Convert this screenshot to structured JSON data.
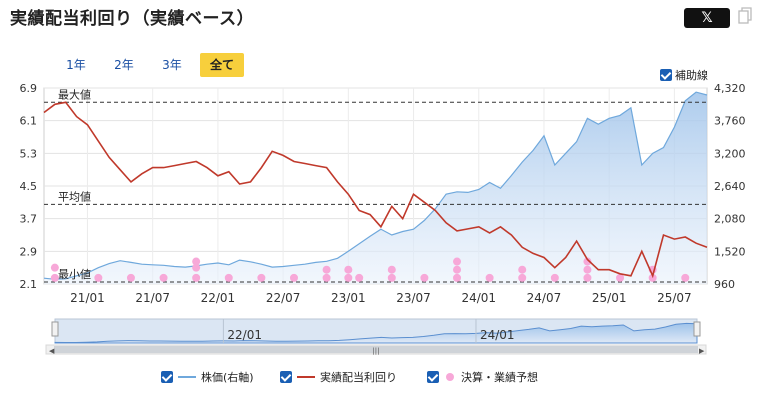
{
  "header": {
    "title": "実績配当利回り（実績ベース）",
    "share_label": "𝕏",
    "copy_icon": "copy-icon"
  },
  "tabs": [
    "1年",
    "2年",
    "3年",
    "全て"
  ],
  "active_tab": "全て",
  "aux_line_label": "補助線",
  "navigator": {
    "labels": [
      "22/01",
      "24/01"
    ],
    "scroll_handle": "|||"
  },
  "legend": [
    {
      "label": "株価(右軸)",
      "color": "#6fa8dc",
      "marker": "line"
    },
    {
      "label": "実績配当利回り",
      "color": "#c0392b",
      "marker": "line"
    },
    {
      "label": "決算・業績予想",
      "color": "#f7a8d8",
      "marker": "dot"
    }
  ],
  "chart_data": {
    "type": "line",
    "x_ticks": [
      "21/01",
      "21/07",
      "22/01",
      "22/07",
      "23/01",
      "23/07",
      "24/01",
      "24/07",
      "25/01",
      "25/07"
    ],
    "x_range": [
      "2020-09",
      "2025-10"
    ],
    "y_left": {
      "ticks": [
        2.1,
        2.9,
        3.7,
        4.5,
        5.3,
        6.1,
        6.9
      ],
      "range": [
        2.1,
        6.9
      ]
    },
    "y_right": {
      "ticks": [
        960,
        1520,
        2080,
        2640,
        3200,
        3760,
        4320
      ],
      "range": [
        960,
        4320
      ]
    },
    "reference_lines": [
      {
        "label": "最大値",
        "value": 6.55
      },
      {
        "label": "平均値",
        "value": 4.05
      },
      {
        "label": "最小値",
        "value": 2.15
      }
    ],
    "series": [
      {
        "name": "実績配当利回り",
        "axis": "left",
        "color": "#c0392b",
        "points": [
          [
            "2020-09",
            6.3
          ],
          [
            "2020-10",
            6.5
          ],
          [
            "2020-11",
            6.55
          ],
          [
            "2020-12",
            6.2
          ],
          [
            "2021-01",
            6.0
          ],
          [
            "2021-02",
            5.6
          ],
          [
            "2021-03",
            5.2
          ],
          [
            "2021-04",
            4.9
          ],
          [
            "2021-05",
            4.6
          ],
          [
            "2021-06",
            4.8
          ],
          [
            "2021-07",
            4.95
          ],
          [
            "2021-08",
            4.95
          ],
          [
            "2021-09",
            5.0
          ],
          [
            "2021-10",
            5.05
          ],
          [
            "2021-11",
            5.1
          ],
          [
            "2021-12",
            4.95
          ],
          [
            "2022-01",
            4.75
          ],
          [
            "2022-02",
            4.85
          ],
          [
            "2022-03",
            4.55
          ],
          [
            "2022-04",
            4.6
          ],
          [
            "2022-05",
            4.95
          ],
          [
            "2022-06",
            5.35
          ],
          [
            "2022-07",
            5.25
          ],
          [
            "2022-08",
            5.1
          ],
          [
            "2022-09",
            5.05
          ],
          [
            "2022-10",
            5.0
          ],
          [
            "2022-11",
            4.95
          ],
          [
            "2022-12",
            4.6
          ],
          [
            "2023-01",
            4.3
          ],
          [
            "2023-02",
            3.9
          ],
          [
            "2023-03",
            3.8
          ],
          [
            "2023-04",
            3.5
          ],
          [
            "2023-05",
            4.0
          ],
          [
            "2023-06",
            3.7
          ],
          [
            "2023-07",
            4.3
          ],
          [
            "2023-08",
            4.1
          ],
          [
            "2023-09",
            3.9
          ],
          [
            "2023-10",
            3.6
          ],
          [
            "2023-11",
            3.4
          ],
          [
            "2023-12",
            3.45
          ],
          [
            "2024-01",
            3.5
          ],
          [
            "2024-02",
            3.35
          ],
          [
            "2024-03",
            3.5
          ],
          [
            "2024-04",
            3.3
          ],
          [
            "2024-05",
            3.0
          ],
          [
            "2024-06",
            2.85
          ],
          [
            "2024-07",
            2.75
          ],
          [
            "2024-08",
            2.5
          ],
          [
            "2024-09",
            2.75
          ],
          [
            "2024-10",
            3.15
          ],
          [
            "2024-11",
            2.7
          ],
          [
            "2024-12",
            2.45
          ],
          [
            "2025-01",
            2.45
          ],
          [
            "2025-02",
            2.35
          ],
          [
            "2025-03",
            2.3
          ],
          [
            "2025-04",
            2.9
          ],
          [
            "2025-05",
            2.3
          ],
          [
            "2025-06",
            3.3
          ],
          [
            "2025-07",
            3.2
          ],
          [
            "2025-08",
            3.25
          ],
          [
            "2025-09",
            3.1
          ],
          [
            "2025-10",
            3.0
          ]
        ]
      },
      {
        "name": "株価(右軸)",
        "axis": "right",
        "color": "#6fa8dc",
        "points": [
          [
            "2020-09",
            1060
          ],
          [
            "2020-10",
            1040
          ],
          [
            "2020-11",
            1050
          ],
          [
            "2020-12",
            1100
          ],
          [
            "2021-01",
            1150
          ],
          [
            "2021-02",
            1240
          ],
          [
            "2021-03",
            1310
          ],
          [
            "2021-04",
            1360
          ],
          [
            "2021-05",
            1330
          ],
          [
            "2021-06",
            1300
          ],
          [
            "2021-07",
            1290
          ],
          [
            "2021-08",
            1280
          ],
          [
            "2021-09",
            1260
          ],
          [
            "2021-10",
            1250
          ],
          [
            "2021-11",
            1270
          ],
          [
            "2021-12",
            1300
          ],
          [
            "2022-01",
            1320
          ],
          [
            "2022-02",
            1290
          ],
          [
            "2022-03",
            1370
          ],
          [
            "2022-04",
            1340
          ],
          [
            "2022-05",
            1300
          ],
          [
            "2022-06",
            1250
          ],
          [
            "2022-07",
            1260
          ],
          [
            "2022-08",
            1280
          ],
          [
            "2022-09",
            1300
          ],
          [
            "2022-10",
            1330
          ],
          [
            "2022-11",
            1350
          ],
          [
            "2022-12",
            1400
          ],
          [
            "2023-01",
            1520
          ],
          [
            "2023-02",
            1650
          ],
          [
            "2023-03",
            1780
          ],
          [
            "2023-04",
            1900
          ],
          [
            "2023-05",
            1800
          ],
          [
            "2023-06",
            1860
          ],
          [
            "2023-07",
            1900
          ],
          [
            "2023-08",
            2050
          ],
          [
            "2023-09",
            2250
          ],
          [
            "2023-10",
            2500
          ],
          [
            "2023-11",
            2540
          ],
          [
            "2023-12",
            2530
          ],
          [
            "2024-01",
            2580
          ],
          [
            "2024-02",
            2700
          ],
          [
            "2024-03",
            2600
          ],
          [
            "2024-04",
            2820
          ],
          [
            "2024-05",
            3050
          ],
          [
            "2024-06",
            3250
          ],
          [
            "2024-07",
            3500
          ],
          [
            "2024-08",
            3000
          ],
          [
            "2024-09",
            3200
          ],
          [
            "2024-10",
            3400
          ],
          [
            "2024-11",
            3800
          ],
          [
            "2024-12",
            3700
          ],
          [
            "2025-01",
            3800
          ],
          [
            "2025-02",
            3850
          ],
          [
            "2025-03",
            3980
          ],
          [
            "2025-04",
            3000
          ],
          [
            "2025-05",
            3200
          ],
          [
            "2025-06",
            3300
          ],
          [
            "2025-07",
            3650
          ],
          [
            "2025-08",
            4100
          ],
          [
            "2025-09",
            4250
          ],
          [
            "2025-10",
            4200
          ]
        ]
      },
      {
        "name": "決算・業績予想",
        "type": "scatter",
        "color": "#f7a8d8",
        "points": [
          [
            "2020-10",
            2.5
          ],
          [
            "2020-10",
            2.25
          ],
          [
            "2021-02",
            2.25
          ],
          [
            "2021-05",
            2.25
          ],
          [
            "2021-08",
            2.25
          ],
          [
            "2021-11",
            2.25
          ],
          [
            "2021-11",
            2.65
          ],
          [
            "2021-11",
            2.5
          ],
          [
            "2022-02",
            2.25
          ],
          [
            "2022-05",
            2.25
          ],
          [
            "2022-08",
            2.25
          ],
          [
            "2022-11",
            2.25
          ],
          [
            "2022-11",
            2.45
          ],
          [
            "2023-01",
            2.25
          ],
          [
            "2023-01",
            2.45
          ],
          [
            "2023-02",
            2.25
          ],
          [
            "2023-05",
            2.25
          ],
          [
            "2023-05",
            2.45
          ],
          [
            "2023-08",
            2.25
          ],
          [
            "2023-11",
            2.25
          ],
          [
            "2023-11",
            2.45
          ],
          [
            "2023-11",
            2.65
          ],
          [
            "2024-02",
            2.25
          ],
          [
            "2024-05",
            2.25
          ],
          [
            "2024-05",
            2.45
          ],
          [
            "2024-08",
            2.25
          ],
          [
            "2024-11",
            2.25
          ],
          [
            "2024-11",
            2.45
          ],
          [
            "2024-11",
            2.65
          ],
          [
            "2025-02",
            2.25
          ],
          [
            "2025-05",
            2.25
          ],
          [
            "2025-05",
            2.45
          ],
          [
            "2025-08",
            2.25
          ]
        ]
      }
    ]
  }
}
